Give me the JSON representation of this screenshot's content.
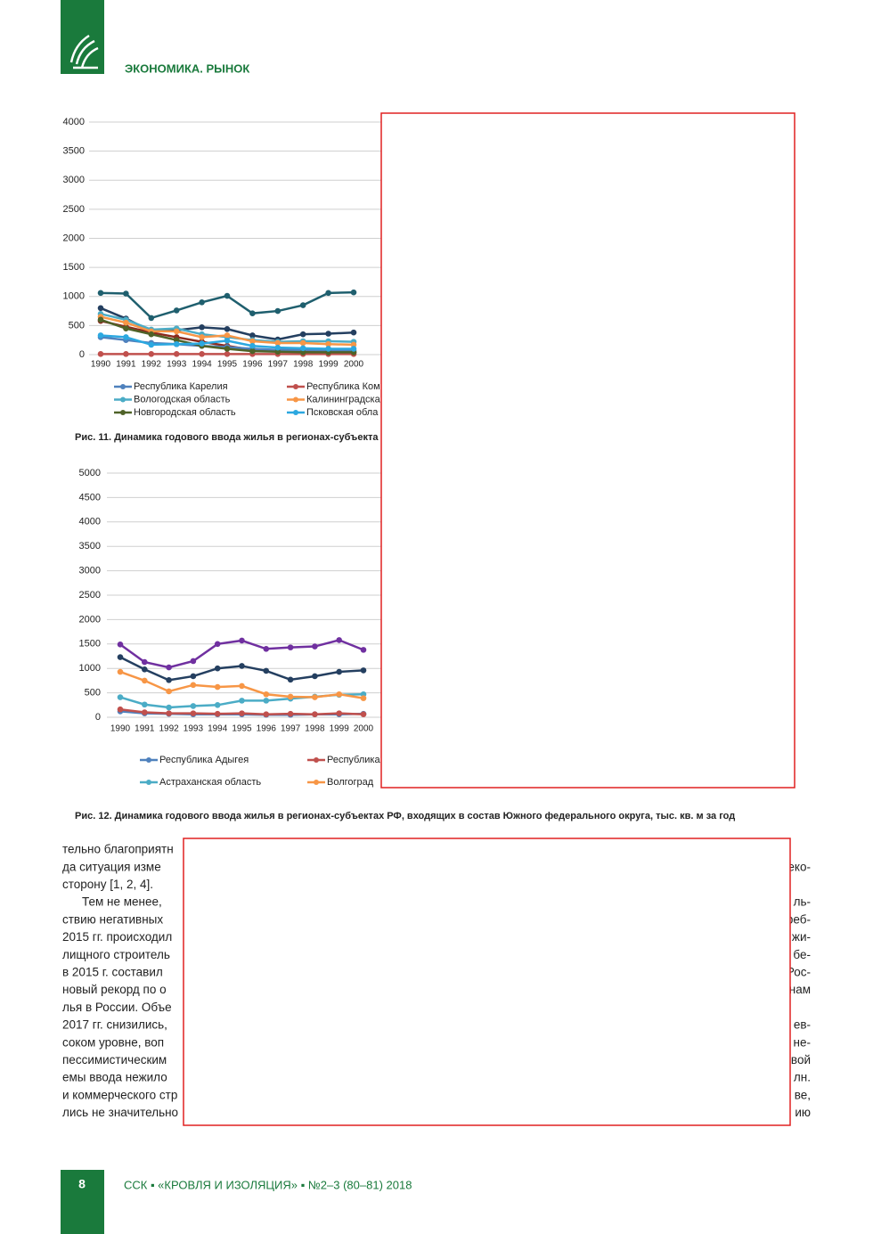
{
  "header": {
    "section": "ЭКОНОМИКА. РЫНОК"
  },
  "chart_data": [
    {
      "type": "line",
      "x_label_mode": "categories",
      "categories": [
        "1990",
        "1991",
        "1992",
        "1993",
        "1994",
        "1995",
        "1996",
        "1997",
        "1998",
        "1999",
        "2000"
      ],
      "ylim": [
        0,
        4000
      ],
      "yticks": [
        0,
        500,
        1000,
        1500,
        2000,
        2500,
        3000,
        3500,
        4000
      ],
      "grid": true,
      "series": [
        {
          "color": "#1f5f6e",
          "values": [
            1060,
            1050,
            630,
            760,
            900,
            1010,
            710,
            750,
            850,
            1060,
            1070
          ]
        },
        {
          "color": "#243f60",
          "values": [
            800,
            620,
            400,
            420,
            470,
            440,
            330,
            260,
            350,
            360,
            380
          ]
        },
        {
          "color": "#8b2a1e",
          "values": [
            580,
            480,
            380,
            300,
            220,
            150,
            80,
            60,
            50,
            40,
            40
          ]
        },
        {
          "name": "Республика Карелия",
          "color": "#4f81bd",
          "values": [
            300,
            250,
            200,
            180,
            150,
            130,
            100,
            80,
            80,
            70,
            70
          ]
        },
        {
          "name": "Республика Ком",
          "color": "#c0504d",
          "values": [
            10,
            10,
            10,
            10,
            10,
            10,
            10,
            10,
            10,
            10,
            10
          ]
        },
        {
          "name": "Вологодская область",
          "color": "#4bacc6",
          "values": [
            700,
            600,
            430,
            450,
            350,
            300,
            250,
            220,
            230,
            230,
            220
          ]
        },
        {
          "name": "Калининградска",
          "color": "#f79646",
          "values": [
            650,
            550,
            400,
            400,
            300,
            330,
            230,
            200,
            200,
            180,
            170
          ]
        },
        {
          "name": "Новгородская область",
          "color": "#4f6228",
          "values": [
            600,
            450,
            350,
            250,
            150,
            100,
            60,
            50,
            40,
            40,
            40
          ]
        },
        {
          "name": "Псковская обла",
          "color": "#2ca8e0",
          "values": [
            330,
            300,
            170,
            180,
            190,
            240,
            150,
            120,
            110,
            100,
            100
          ]
        }
      ],
      "caption": "Рис. 11. Динамика годового ввода жилья в регионах-субъекта"
    },
    {
      "type": "line",
      "categories": [
        "1990",
        "1991",
        "1992",
        "1993",
        "1994",
        "1995",
        "1996",
        "1997",
        "1998",
        "1999",
        "2000"
      ],
      "ylim": [
        0,
        5000
      ],
      "yticks": [
        0,
        500,
        1000,
        1500,
        2000,
        2500,
        3000,
        3500,
        4000,
        4500,
        5000
      ],
      "grid": true,
      "series": [
        {
          "color": "#7030a0",
          "values": [
            1490,
            1130,
            1020,
            1150,
            1500,
            1570,
            1400,
            1430,
            1450,
            1580,
            1380
          ]
        },
        {
          "color": "#243f60",
          "values": [
            1230,
            980,
            760,
            840,
            1000,
            1050,
            950,
            770,
            840,
            930,
            960
          ]
        },
        {
          "name": "Республика Адыгея",
          "color": "#4f81bd",
          "values": [
            120,
            80,
            70,
            60,
            60,
            60,
            50,
            50,
            60,
            60,
            70
          ]
        },
        {
          "name": "Республика",
          "color": "#c0504d",
          "values": [
            160,
            100,
            80,
            80,
            70,
            80,
            60,
            70,
            60,
            80,
            60
          ]
        },
        {
          "name": "Астраханская область",
          "color": "#4bacc6",
          "values": [
            410,
            260,
            200,
            230,
            250,
            340,
            340,
            380,
            420,
            460,
            470
          ]
        },
        {
          "name": "Волгоград",
          "color": "#f79646",
          "values": [
            930,
            750,
            530,
            660,
            620,
            640,
            470,
            420,
            410,
            470,
            390
          ]
        }
      ],
      "caption": "Рис. 12. Динамика годового ввода жилья в регионах-субъектах РФ, входящих в состав Южного федерального округа, тыс. кв. м за год"
    }
  ],
  "text": {
    "lines": [
      [
        "тельно благоприятн"
      ],
      [
        "да ситуация изме",
        "еко-"
      ],
      [
        "сторону [1, 2, 4]."
      ],
      [
        "Тем не менее,",
        "ль-"
      ],
      [
        "ствию негативных",
        "реб-"
      ],
      [
        "2015 гг. происходил",
        "жи-"
      ],
      [
        "лищного строитель",
        "бе-"
      ],
      [
        "в 2015 г. составил",
        "Рос-"
      ],
      [
        "новый рекорд по о",
        "нам"
      ],
      [
        "лья в России. Объе"
      ],
      [
        "2017 гг. снизились,",
        "ев-"
      ],
      [
        "соком уровне, воп",
        "не-"
      ],
      [
        "пессимистическим",
        "вой"
      ],
      [
        "емы ввода нежило",
        "лн."
      ],
      [
        "и коммерческого стр",
        "ве,"
      ],
      [
        "лись не значительно",
        "ию"
      ]
    ]
  },
  "footer": {
    "page": "8",
    "journal": "ССК ▪ «КРОВЛЯ И ИЗОЛЯЦИЯ» ▪ №2–3 (80–81) 2018"
  }
}
